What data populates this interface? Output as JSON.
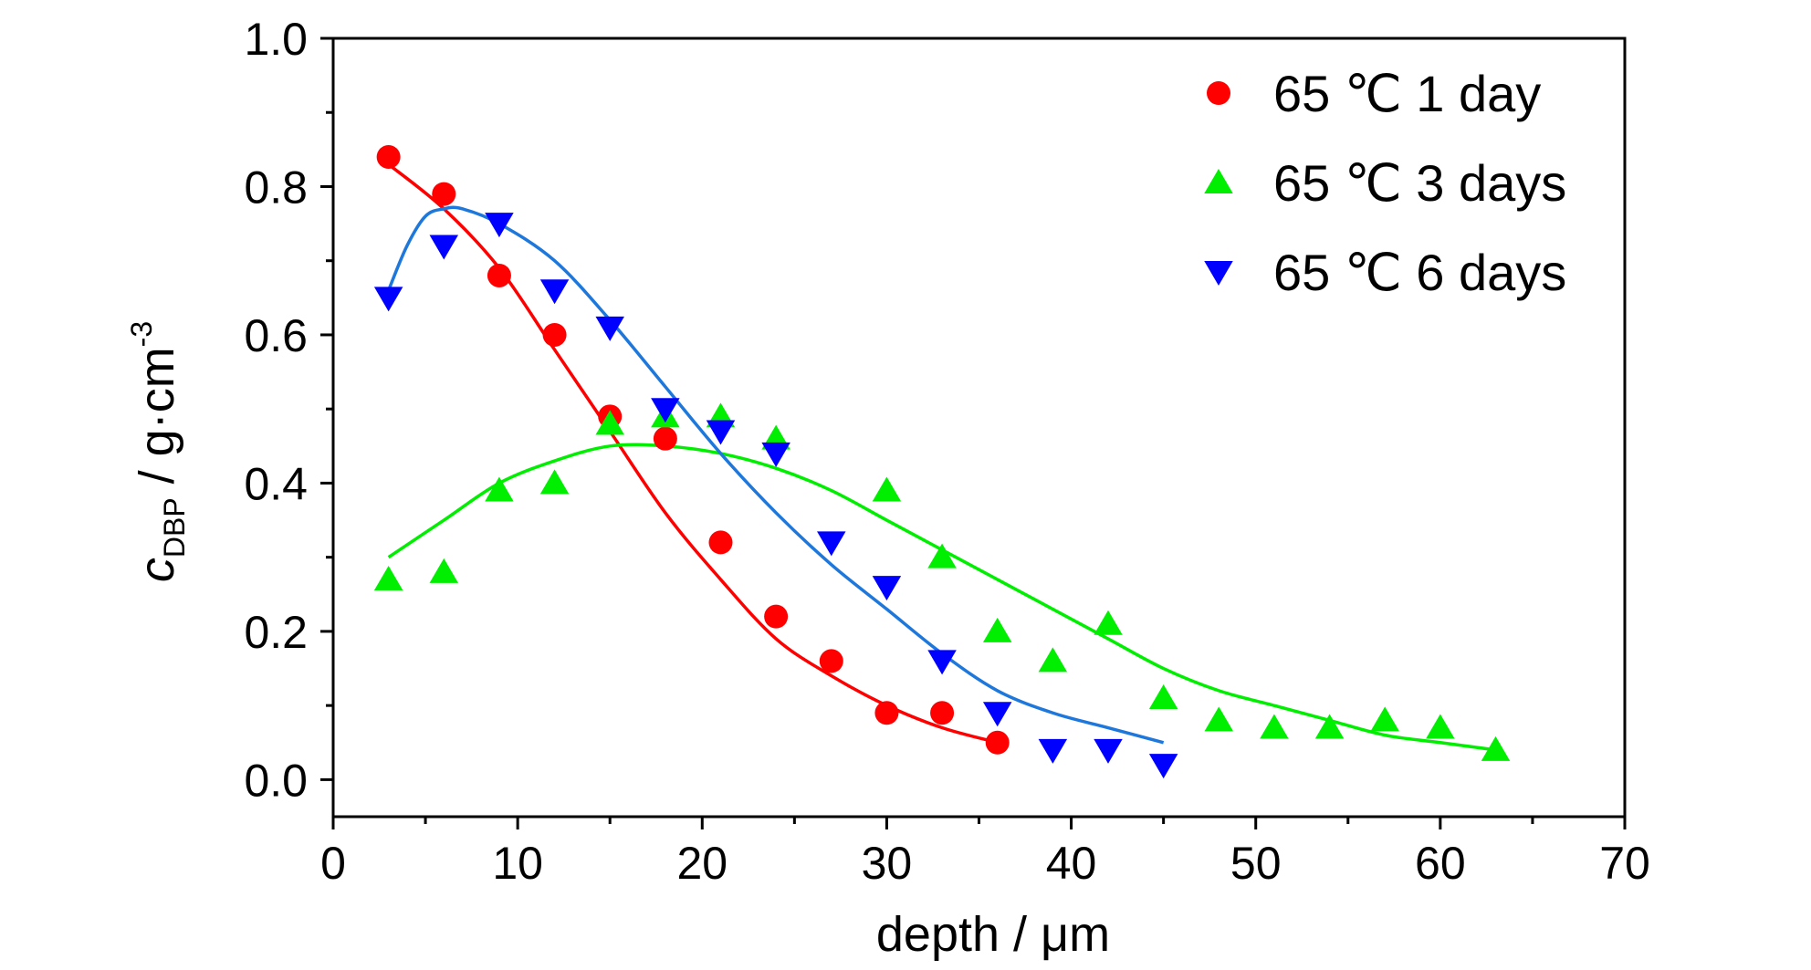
{
  "chart_data": {
    "type": "scatter",
    "xlabel": "depth / μm",
    "ylabel_main": "c",
    "ylabel_sub": "DBP",
    "ylabel_unit": " / g·cm",
    "ylabel_sup": "-3",
    "xlim": [
      0,
      70
    ],
    "ylim": [
      -0.05,
      1.0
    ],
    "xticks": [
      0,
      10,
      20,
      30,
      40,
      50,
      60,
      70
    ],
    "xtick_labels": [
      "0",
      "10",
      "20",
      "30",
      "40",
      "50",
      "60",
      "70"
    ],
    "yticks": [
      0.0,
      0.2,
      0.4,
      0.6,
      0.8,
      1.0
    ],
    "ytick_labels": [
      "0.0",
      "0.2",
      "0.4",
      "0.6",
      "0.8",
      "1.0"
    ],
    "grid": false,
    "legend_position": "top-right",
    "series": [
      {
        "name": "65 ℃  1 day",
        "marker": "circle",
        "color": "#ff0000",
        "fit_color": "#ff0000",
        "x": [
          3,
          6,
          9,
          12,
          15,
          18,
          21,
          24,
          27,
          30,
          33,
          36
        ],
        "y": [
          0.84,
          0.79,
          0.68,
          0.6,
          0.49,
          0.46,
          0.32,
          0.22,
          0.16,
          0.09,
          0.09,
          0.05
        ],
        "fit_x": [
          3,
          6,
          9,
          12,
          15,
          18,
          21,
          24,
          27,
          30,
          33,
          36
        ],
        "fit_y": [
          0.83,
          0.77,
          0.69,
          0.58,
          0.47,
          0.36,
          0.27,
          0.19,
          0.14,
          0.1,
          0.07,
          0.05
        ]
      },
      {
        "name": "65 ℃  3 days",
        "marker": "triangle-up",
        "color": "#00ee00",
        "fit_color": "#00ee00",
        "x": [
          3,
          6,
          9,
          12,
          15,
          18,
          21,
          24,
          30,
          33,
          36,
          39,
          42,
          45,
          48,
          51,
          54,
          57,
          60,
          63
        ],
        "y": [
          0.27,
          0.28,
          0.39,
          0.4,
          0.48,
          0.49,
          0.49,
          0.46,
          0.39,
          0.3,
          0.2,
          0.16,
          0.21,
          0.11,
          0.08,
          0.07,
          0.07,
          0.08,
          0.07,
          0.04
        ],
        "fit_x": [
          3,
          6,
          9,
          12,
          15,
          18,
          21,
          24,
          27,
          30,
          33,
          36,
          39,
          42,
          45,
          48,
          51,
          54,
          57,
          60,
          63
        ],
        "fit_y": [
          0.3,
          0.35,
          0.4,
          0.43,
          0.45,
          0.45,
          0.44,
          0.42,
          0.39,
          0.35,
          0.31,
          0.27,
          0.23,
          0.19,
          0.15,
          0.12,
          0.1,
          0.08,
          0.06,
          0.05,
          0.04
        ]
      },
      {
        "name": "65 ℃  6 days",
        "marker": "triangle-down",
        "color": "#0000ff",
        "fit_color": "#1e78dc",
        "x": [
          3,
          6,
          9,
          12,
          15,
          18,
          21,
          24,
          27,
          30,
          33,
          36,
          39,
          42,
          45
        ],
        "y": [
          0.65,
          0.72,
          0.75,
          0.66,
          0.61,
          0.5,
          0.47,
          0.44,
          0.32,
          0.26,
          0.16,
          0.09,
          0.04,
          0.04,
          0.02
        ],
        "fit_x": [
          3,
          4,
          5,
          6,
          7,
          9,
          12,
          15,
          18,
          21,
          24,
          27,
          30,
          33,
          36,
          39,
          42,
          45
        ],
        "fit_y": [
          0.66,
          0.72,
          0.76,
          0.77,
          0.77,
          0.75,
          0.7,
          0.62,
          0.53,
          0.44,
          0.36,
          0.29,
          0.23,
          0.17,
          0.12,
          0.09,
          0.07,
          0.05
        ]
      }
    ]
  }
}
